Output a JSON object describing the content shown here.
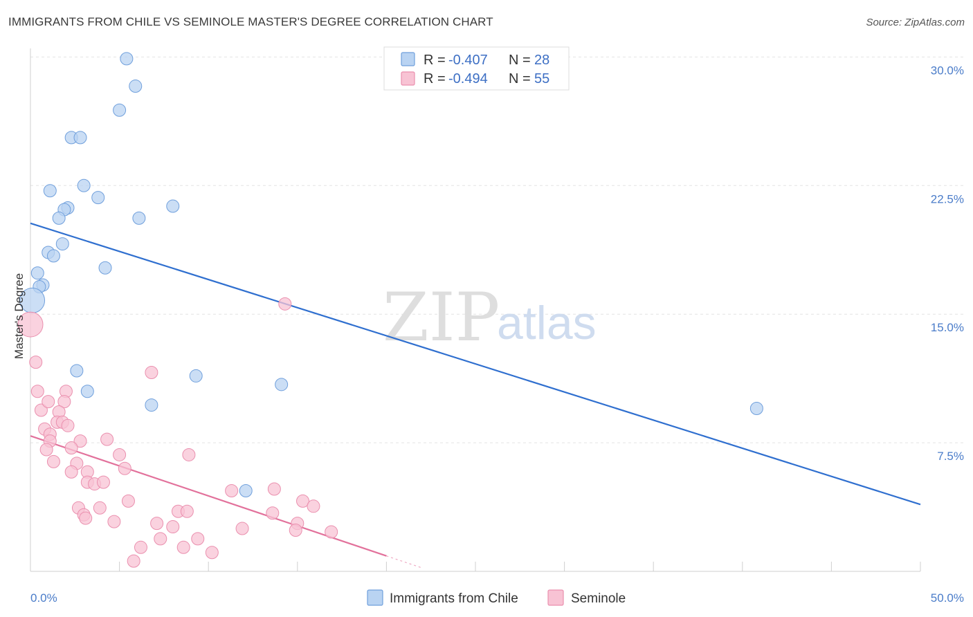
{
  "title": "IMMIGRANTS FROM CHILE VS SEMINOLE MASTER'S DEGREE CORRELATION CHART",
  "source": "Source: ZipAtlas.com",
  "watermark": {
    "zip": "ZIP",
    "atlas": "atlas"
  },
  "colors": {
    "chile_fill": "#b9d3f2",
    "chile_stroke": "#6f9fdc",
    "chile_line": "#2f6fcf",
    "seminole_fill": "#f8c3d4",
    "seminole_stroke": "#ea8fae",
    "seminole_line": "#e2719b",
    "axis_text": "#4a7cc9",
    "grid": "#e3e3e3"
  },
  "legend": {
    "rows": [
      {
        "r_label": "R =",
        "r_value": "-0.407",
        "n_label": "N =",
        "n_value": "28"
      },
      {
        "r_label": "R =",
        "r_value": "-0.494",
        "n_label": "N =",
        "n_value": "55"
      }
    ]
  },
  "chart_data": {
    "type": "scatter",
    "title": "IMMIGRANTS FROM CHILE VS SEMINOLE MASTER'S DEGREE CORRELATION CHART",
    "xlabel": "",
    "ylabel": "Master's Degree",
    "xlim": [
      0,
      50
    ],
    "ylim": [
      0,
      30.5
    ],
    "x_tick_labels": [
      "0.0%",
      "50.0%"
    ],
    "y_ticks": [
      7.5,
      15.0,
      22.5,
      30.0
    ],
    "y_tick_labels": [
      "7.5%",
      "15.0%",
      "22.5%",
      "30.0%"
    ],
    "grid": true,
    "series": [
      {
        "name": "Immigrants from Chile",
        "points": [
          {
            "x": 5.4,
            "y": 29.9
          },
          {
            "x": 5.9,
            "y": 28.3
          },
          {
            "x": 5.0,
            "y": 26.9
          },
          {
            "x": 2.3,
            "y": 25.3
          },
          {
            "x": 2.8,
            "y": 25.3
          },
          {
            "x": 3.0,
            "y": 22.5
          },
          {
            "x": 1.1,
            "y": 22.2
          },
          {
            "x": 3.8,
            "y": 21.8
          },
          {
            "x": 8.0,
            "y": 21.3
          },
          {
            "x": 2.1,
            "y": 21.2
          },
          {
            "x": 1.9,
            "y": 21.1
          },
          {
            "x": 1.6,
            "y": 20.6
          },
          {
            "x": 6.1,
            "y": 20.6
          },
          {
            "x": 1.8,
            "y": 19.1
          },
          {
            "x": 1.0,
            "y": 18.6
          },
          {
            "x": 1.3,
            "y": 18.4
          },
          {
            "x": 4.2,
            "y": 17.7
          },
          {
            "x": 0.4,
            "y": 17.4
          },
          {
            "x": 0.7,
            "y": 16.7
          },
          {
            "x": 0.5,
            "y": 16.6
          },
          {
            "x": 0.1,
            "y": 15.8,
            "size": "large"
          },
          {
            "x": 2.6,
            "y": 11.7
          },
          {
            "x": 9.3,
            "y": 11.4
          },
          {
            "x": 3.2,
            "y": 10.5
          },
          {
            "x": 14.1,
            "y": 10.9
          },
          {
            "x": 6.8,
            "y": 9.7
          },
          {
            "x": 40.8,
            "y": 9.5
          },
          {
            "x": 12.1,
            "y": 4.7
          }
        ],
        "trend": {
          "x": [
            0,
            50
          ],
          "y": [
            20.3,
            3.9
          ]
        }
      },
      {
        "name": "Seminole",
        "points": [
          {
            "x": 0.0,
            "y": 14.4,
            "size": "large"
          },
          {
            "x": 14.3,
            "y": 15.6
          },
          {
            "x": 0.3,
            "y": 12.2
          },
          {
            "x": 6.8,
            "y": 11.6
          },
          {
            "x": 0.4,
            "y": 10.5
          },
          {
            "x": 2.0,
            "y": 10.5
          },
          {
            "x": 0.6,
            "y": 9.4
          },
          {
            "x": 1.0,
            "y": 9.9
          },
          {
            "x": 1.9,
            "y": 9.9
          },
          {
            "x": 1.6,
            "y": 9.3
          },
          {
            "x": 1.5,
            "y": 8.7
          },
          {
            "x": 1.8,
            "y": 8.7
          },
          {
            "x": 2.1,
            "y": 8.5
          },
          {
            "x": 0.8,
            "y": 8.3
          },
          {
            "x": 1.1,
            "y": 8.0
          },
          {
            "x": 1.1,
            "y": 7.6
          },
          {
            "x": 2.8,
            "y": 7.6
          },
          {
            "x": 4.3,
            "y": 7.7
          },
          {
            "x": 0.9,
            "y": 7.1
          },
          {
            "x": 2.3,
            "y": 7.2
          },
          {
            "x": 5.0,
            "y": 6.8
          },
          {
            "x": 8.9,
            "y": 6.8
          },
          {
            "x": 1.3,
            "y": 6.4
          },
          {
            "x": 2.6,
            "y": 6.3
          },
          {
            "x": 5.3,
            "y": 6.0
          },
          {
            "x": 2.3,
            "y": 5.8
          },
          {
            "x": 3.2,
            "y": 5.8
          },
          {
            "x": 3.2,
            "y": 5.2
          },
          {
            "x": 3.6,
            "y": 5.1
          },
          {
            "x": 4.1,
            "y": 5.2
          },
          {
            "x": 11.3,
            "y": 4.7
          },
          {
            "x": 13.7,
            "y": 4.8
          },
          {
            "x": 5.5,
            "y": 4.1
          },
          {
            "x": 15.3,
            "y": 4.1
          },
          {
            "x": 2.7,
            "y": 3.7
          },
          {
            "x": 3.9,
            "y": 3.7
          },
          {
            "x": 15.9,
            "y": 3.8
          },
          {
            "x": 8.3,
            "y": 3.5
          },
          {
            "x": 8.8,
            "y": 3.5
          },
          {
            "x": 3.0,
            "y": 3.3
          },
          {
            "x": 3.1,
            "y": 3.1
          },
          {
            "x": 13.6,
            "y": 3.4
          },
          {
            "x": 4.7,
            "y": 2.9
          },
          {
            "x": 7.1,
            "y": 2.8
          },
          {
            "x": 8.0,
            "y": 2.6
          },
          {
            "x": 15.0,
            "y": 2.8
          },
          {
            "x": 11.9,
            "y": 2.5
          },
          {
            "x": 14.9,
            "y": 2.4
          },
          {
            "x": 16.9,
            "y": 2.3
          },
          {
            "x": 7.3,
            "y": 1.9
          },
          {
            "x": 9.4,
            "y": 1.9
          },
          {
            "x": 6.2,
            "y": 1.4
          },
          {
            "x": 8.6,
            "y": 1.4
          },
          {
            "x": 10.2,
            "y": 1.1
          },
          {
            "x": 5.8,
            "y": 0.6
          }
        ],
        "trend": {
          "x": [
            0,
            20
          ],
          "y": [
            7.9,
            0.9
          ]
        },
        "trend_extension": {
          "x": [
            20,
            22
          ],
          "y": [
            0.9,
            0.2
          ]
        }
      }
    ]
  }
}
